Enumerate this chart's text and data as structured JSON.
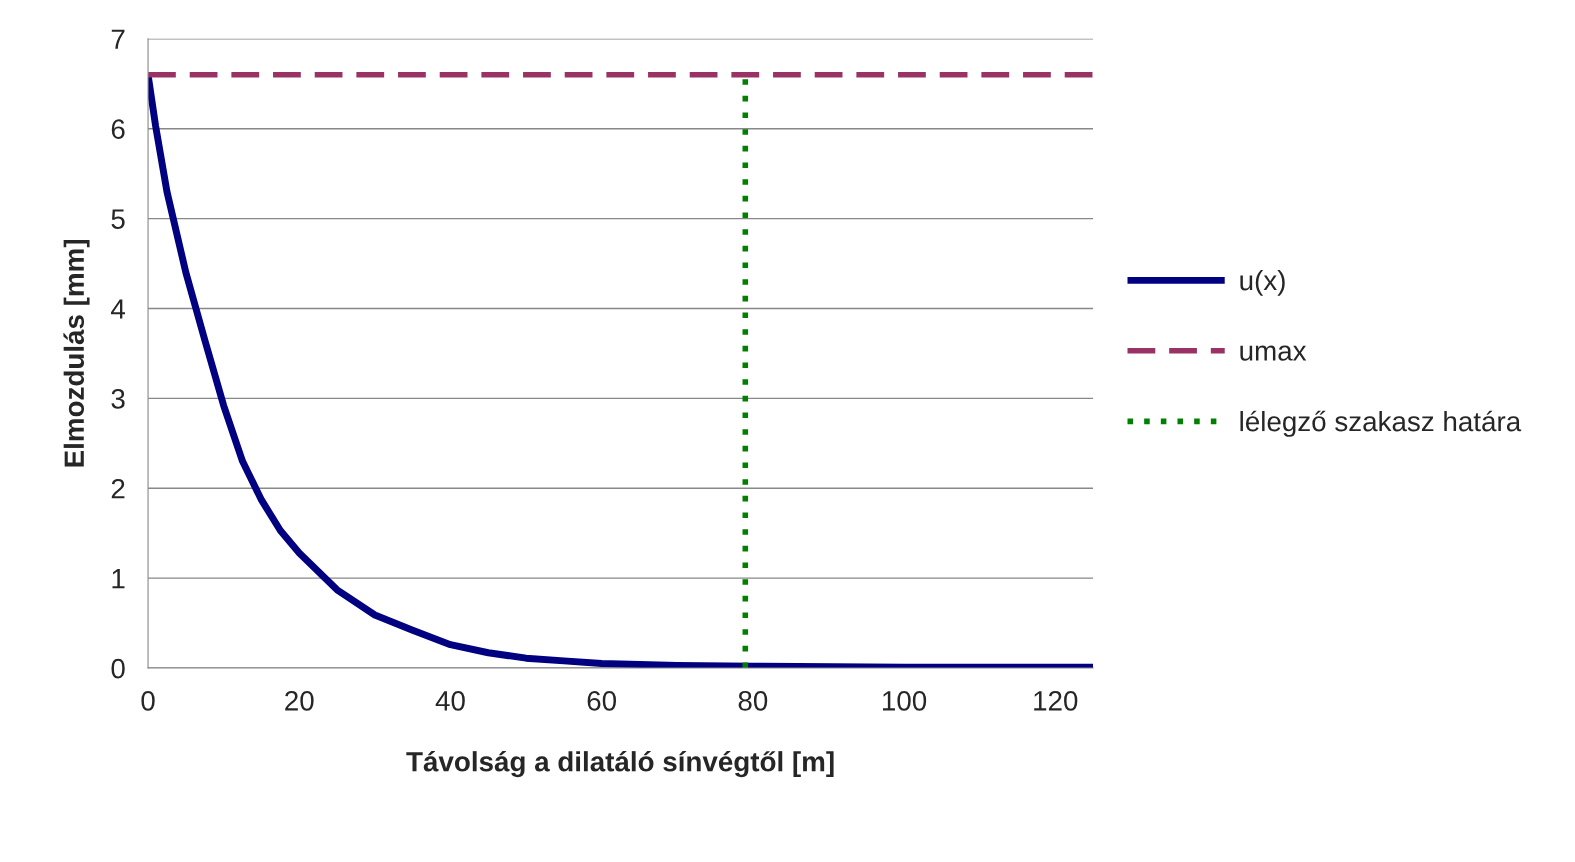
{
  "chart_data": {
    "type": "line",
    "xlabel": "Távolság a dilatáló sínvégtől [m]",
    "ylabel": "Elmozdulás [mm]",
    "xlim": [
      0,
      125
    ],
    "xticks": [
      0,
      20,
      40,
      60,
      80,
      100,
      120
    ],
    "ylim": [
      0,
      7
    ],
    "yticks": [
      0,
      1,
      2,
      3,
      4,
      5,
      6,
      7
    ],
    "grid": "y",
    "legend": "right",
    "series": [
      {
        "name": "u(x)",
        "color": "#000080",
        "line_style": "solid",
        "x": [
          0,
          1,
          2.5,
          5,
          7.5,
          10,
          12.5,
          15,
          17.5,
          20,
          25,
          30,
          35,
          40,
          45,
          50,
          55,
          60,
          70,
          80,
          100,
          125
        ],
        "values": [
          6.6,
          6.03,
          5.3,
          4.4,
          3.65,
          2.92,
          2.3,
          1.87,
          1.53,
          1.28,
          0.87,
          0.59,
          0.42,
          0.26,
          0.17,
          0.11,
          0.08,
          0.05,
          0.03,
          0.02,
          0.01,
          0.01
        ]
      },
      {
        "name": "umax",
        "color": "#993366",
        "line_style": "dashed",
        "x": [
          0,
          125
        ],
        "values": [
          6.6,
          6.6
        ]
      },
      {
        "name": "lélegző szakasz határa",
        "color": "#008000",
        "line_style": "dotted",
        "x": [
          79,
          79
        ],
        "values": [
          0,
          6.6
        ]
      }
    ]
  }
}
